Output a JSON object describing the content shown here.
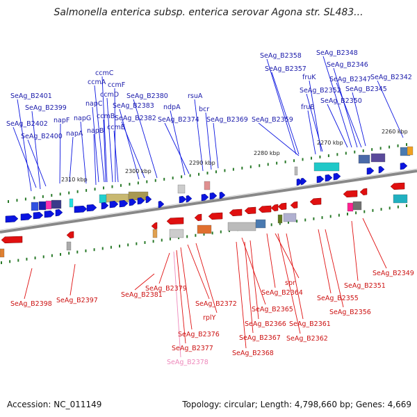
{
  "title": "Salmonella enterica subsp. enterica serovar Agona str. SL483...",
  "footer": {
    "accession": "Accession: NC_011149",
    "info": "Topology: circular; Length: 4,798,660 bp; Genes: 4,669"
  },
  "colors": {
    "forward_gene": "#0a14e0",
    "reverse_gene": "#e01010",
    "forward_label": "#1a1aaa",
    "reverse_label": "#cc1111",
    "pseudo_label": "#ee88bb",
    "backbone": "#888888",
    "tick": "#2a7a2a"
  },
  "kbp_labels": [
    "2310 kbp",
    "2300 kbp",
    "2290 kbp",
    "2280 kbp",
    "2270 kbp",
    "2260 kbp"
  ],
  "forward_genes": [
    "SeAg_B2401",
    "SeAg_B2399",
    "SeAg_B2402",
    "SeAg_B2400",
    "napF",
    "napA",
    "napG",
    "napB",
    "napC",
    "ccmB",
    "ccmA",
    "ccmC",
    "ccmD",
    "ccmE",
    "ccmF",
    "SeAg_B2383",
    "SeAg_B2380",
    "SeAg_B2382",
    "ndpA",
    "SeAg_B2374",
    "rsuA",
    "bcr",
    "SeAg_B2369",
    "SeAg_B2359",
    "SeAg_B2358",
    "SeAg_B2357",
    "fruK",
    "fruB",
    "SeAg_B2352",
    "SeAg_B2348",
    "SeAg_B2346",
    "SeAg_B2347",
    "SeAg_B2345",
    "SeAg_B2350",
    "SeAg_B2342"
  ],
  "reverse_genes": [
    "SeAg_B2398",
    "SeAg_B2397",
    "SeAg_B2381",
    "SeAg_B2379",
    "SeAg_B2372",
    "rplY",
    "SeAg_B2376",
    "SeAg_B2377",
    "SeAg_B2378",
    "SeAg_B2365",
    "SeAg_B2364",
    "spr",
    "SeAg_B2366",
    "SeAg_B2367",
    "SeAg_B2368",
    "SeAg_B2361",
    "SeAg_B2362",
    "SeAg_B2355",
    "SeAg_B2356",
    "SeAg_B2351",
    "SeAg_B2349"
  ]
}
